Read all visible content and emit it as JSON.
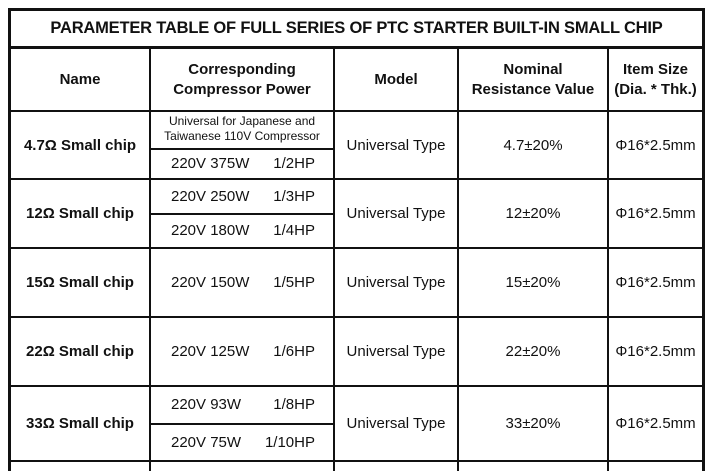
{
  "title": "PARAMETER TABLE OF FULL SERIES OF PTC STARTER BUILT-IN SMALL CHIP",
  "columns": [
    "Name",
    "Corresponding Compressor Power",
    "Model",
    "Nominal Resistance Value",
    "Item Size (Dia. * Thk.)"
  ],
  "rows": [
    {
      "name": "4.7Ω Small chip",
      "power_note": "Universal for Japanese and Taiwanese 110V Compressor",
      "power_specs": [
        {
          "w": "220V 375W",
          "hp": "1/2HP"
        }
      ],
      "model": "Universal Type",
      "resistance": "4.7±20%",
      "size": "Φ16*2.5mm"
    },
    {
      "name": "12Ω Small chip",
      "power_specs": [
        {
          "w": "220V 250W",
          "hp": "1/3HP"
        },
        {
          "w": "220V 180W",
          "hp": "1/4HP"
        }
      ],
      "model": "Universal Type",
      "resistance": "12±20%",
      "size": "Φ16*2.5mm"
    },
    {
      "name": "15Ω Small chip",
      "power_specs": [
        {
          "w": "220V 150W",
          "hp": "1/5HP"
        }
      ],
      "model": "Universal Type",
      "resistance": "15±20%",
      "size": "Φ16*2.5mm"
    },
    {
      "name": "22Ω Small chip",
      "power_specs": [
        {
          "w": "220V 125W",
          "hp": "1/6HP"
        }
      ],
      "model": "Universal Type",
      "resistance": "22±20%",
      "size": "Φ16*2.5mm"
    },
    {
      "name": "33Ω Small chip",
      "power_specs": [
        {
          "w": "220V 93W",
          "hp": "1/8HP"
        },
        {
          "w": "220V 75W",
          "hp": "1/10HP"
        }
      ],
      "model": "Universal Type",
      "resistance": "33±20%",
      "size": "Φ16*2.5mm"
    }
  ],
  "colors": {
    "border": "#111111",
    "text": "#111111",
    "background": "#ffffff"
  }
}
